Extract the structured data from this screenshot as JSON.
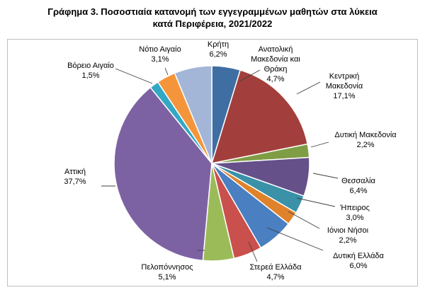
{
  "chart_data": {
    "type": "pie",
    "title_line1": "Γράφημα 3. Ποσοστιαία κατανομή των εγγεγραμμένων μαθητών στα λύκεια",
    "title_line2": "κατά Περιφέρεια, 2021/2022",
    "slices": [
      {
        "label": [
          "Ανατολική",
          "Μακεδονία και",
          "Θράκη"
        ],
        "value_label": "4,7%",
        "value": 4.7,
        "color": "#3f6ea3"
      },
      {
        "label": [
          "Κεντρική",
          "Μακεδονία"
        ],
        "value_label": "17,1%",
        "value": 17.1,
        "color": "#a23f3c"
      },
      {
        "label": [
          "Δυτική Μακεδονία"
        ],
        "value_label": "2,2%",
        "value": 2.2,
        "color": "#7f9d45"
      },
      {
        "label": [
          "Θεσσαλία"
        ],
        "value_label": "6,4%",
        "value": 6.4,
        "color": "#65508a"
      },
      {
        "label": [
          "Ήπειρος"
        ],
        "value_label": "3,0%",
        "value": 3.0,
        "color": "#3a91a8"
      },
      {
        "label": [
          "Ιόνιοι Νήσοι"
        ],
        "value_label": "2,2%",
        "value": 2.2,
        "color": "#e0822b"
      },
      {
        "label": [
          "Δυτική Ελλάδα"
        ],
        "value_label": "6,0%",
        "value": 6.0,
        "color": "#4a7fc1"
      },
      {
        "label": [
          "Στερεά Ελλάδα"
        ],
        "value_label": "4,7%",
        "value": 4.7,
        "color": "#c9504c"
      },
      {
        "label": [
          "Πελοπόννησος"
        ],
        "value_label": "5,1%",
        "value": 5.1,
        "color": "#9bbb59"
      },
      {
        "label": [
          "Αττική"
        ],
        "value_label": "37,7%",
        "value": 37.7,
        "color": "#7d62a3"
      },
      {
        "label": [
          "Βόρειο Αιγαίο"
        ],
        "value_label": "1,5%",
        "value": 1.5,
        "color": "#32a8c4"
      },
      {
        "label": [
          "Νότιο Αιγαίο"
        ],
        "value_label": "3,1%",
        "value": 3.1,
        "color": "#f4953b"
      },
      {
        "label": [
          "Κρήτη"
        ],
        "value_label": "6,2%",
        "value": 6.2,
        "color": "#a3b6d8"
      }
    ]
  }
}
